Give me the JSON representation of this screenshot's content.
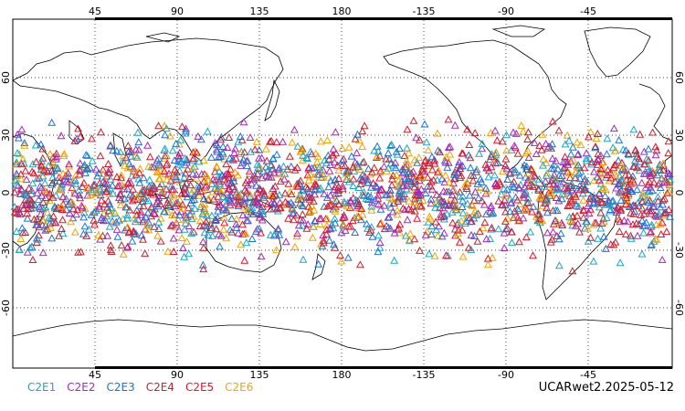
{
  "map": {
    "top_lon_ticks": [
      "45",
      "90",
      "135",
      "180",
      "-135",
      "-90",
      "-45"
    ],
    "bottom_lon_ticks": [
      "45",
      "90",
      "135",
      "180",
      "-135",
      "-90",
      "-45"
    ],
    "left_lat_ticks": [
      "60",
      "30",
      "0",
      "-30",
      "-60"
    ],
    "right_lat_ticks": [
      "60",
      "30",
      "0",
      "-30",
      "-60"
    ]
  },
  "legend": {
    "items": [
      {
        "label": "C2E1",
        "color": "#18a7c9"
      },
      {
        "label": "C2E2",
        "color": "#a42bb9"
      },
      {
        "label": "C2E3",
        "color": "#1e73d8"
      },
      {
        "label": "C2E4",
        "color": "#c0262d"
      },
      {
        "label": "C2E5",
        "color": "#e3132d"
      },
      {
        "label": "C2E6",
        "color": "#f2a400"
      }
    ]
  },
  "stamp": "UCARwet2.2025-05-12"
}
